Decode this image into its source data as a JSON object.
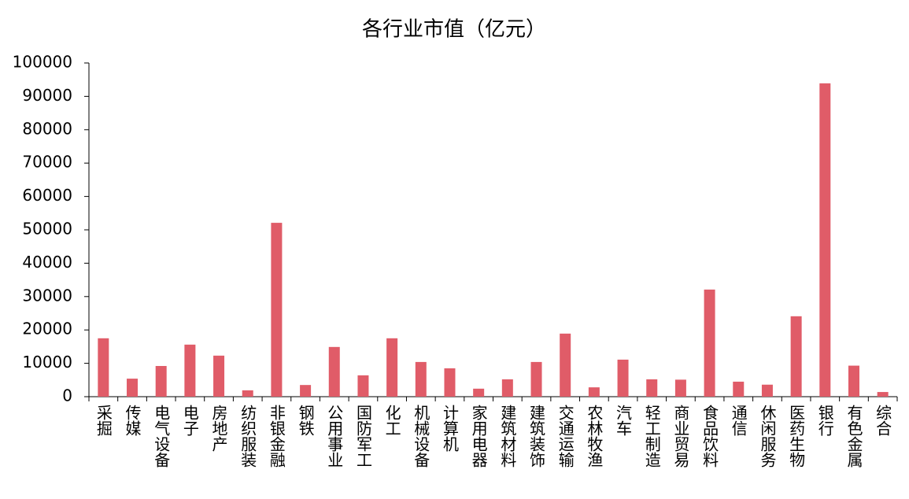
{
  "chart_data": {
    "type": "bar",
    "title": "各行业市值（亿元）",
    "categories": [
      "采掘",
      "传媒",
      "电气设备",
      "电子",
      "房地产",
      "纺织服装",
      "非银金融",
      "钢铁",
      "公用事业",
      "国防军工",
      "化工",
      "机械设备",
      "计算机",
      "家用电器",
      "建筑材料",
      "建筑装饰",
      "交通运输",
      "农林牧渔",
      "汽车",
      "轻工制造",
      "商业贸易",
      "食品饮料",
      "通信",
      "休闲服务",
      "医药生物",
      "银行",
      "有色金属",
      "综合"
    ],
    "values": [
      17500,
      5400,
      9200,
      15600,
      12300,
      1900,
      52100,
      3500,
      14900,
      6400,
      17500,
      10400,
      8500,
      2400,
      5200,
      10400,
      18900,
      2800,
      11100,
      5200,
      5100,
      32100,
      4500,
      3600,
      24100,
      93900,
      9300,
      1400
    ],
    "color": "#e05c68",
    "ylim": [
      0,
      100000
    ],
    "yticks": [
      0,
      10000,
      20000,
      30000,
      40000,
      50000,
      60000,
      70000,
      80000,
      90000,
      100000
    ],
    "grid": false
  }
}
